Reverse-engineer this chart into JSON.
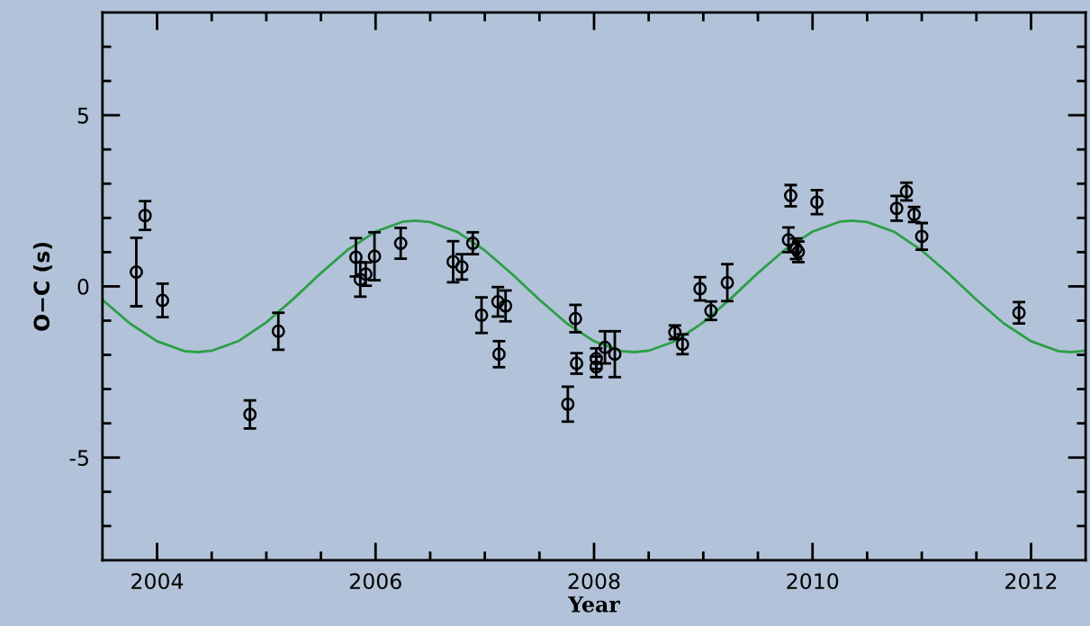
{
  "chart_data": {
    "type": "scatter",
    "xlabel": "Year",
    "ylabel": "O−C (s)",
    "xlim": [
      2003.5,
      2012.5
    ],
    "ylim": [
      -8,
      8
    ],
    "xticks": [
      2004,
      {
        "value": 2004.5,
        "label": null
      },
      {
        "value": 2005,
        "label": null
      },
      {
        "value": 2005.5,
        "label": null
      },
      2006,
      {
        "value": 2006.5,
        "label": null
      },
      {
        "value": 2007,
        "label": null
      },
      {
        "value": 2007.5,
        "label": null
      },
      2008,
      {
        "value": 2008.5,
        "label": null
      },
      {
        "value": 2009,
        "label": null
      },
      {
        "value": 2009.5,
        "label": null
      },
      2010,
      {
        "value": 2010.5,
        "label": null
      },
      {
        "value": 2011,
        "label": null
      },
      {
        "value": 2011.5,
        "label": null
      },
      2012
    ],
    "yticks": [
      {
        "value": -7,
        "label": null
      },
      {
        "value": -6,
        "label": null
      },
      -5,
      {
        "value": -4,
        "label": null
      },
      {
        "value": -3,
        "label": null
      },
      {
        "value": -2,
        "label": null
      },
      {
        "value": -1,
        "label": null
      },
      0,
      {
        "value": 1,
        "label": null
      },
      {
        "value": 2,
        "label": null
      },
      {
        "value": 3,
        "label": null
      },
      {
        "value": 4,
        "label": null
      },
      5,
      {
        "value": 6,
        "label": null
      },
      {
        "value": 7,
        "label": null
      }
    ],
    "grid": false,
    "legend": false,
    "series": [
      {
        "type": "line",
        "color": "#2e9e48",
        "line_style": "solid",
        "marker": "none",
        "x": [
          2003.5,
          2003.75,
          2004.0,
          2004.25,
          2004.37,
          2004.5,
          2004.75,
          2005.0,
          2005.25,
          2005.5,
          2005.75,
          2006.0,
          2006.25,
          2006.37,
          2006.5,
          2006.75,
          2007.0,
          2007.25,
          2007.5,
          2007.75,
          2008.0,
          2008.25,
          2008.37,
          2008.5,
          2008.75,
          2009.0,
          2009.25,
          2009.5,
          2009.75,
          2010.0,
          2010.25,
          2010.37,
          2010.5,
          2010.75,
          2011.0,
          2011.25,
          2011.5,
          2011.75,
          2012.0,
          2012.25,
          2012.37,
          2012.5
        ],
        "values": [
          -0.39,
          -1.08,
          -1.6,
          -1.89,
          -1.92,
          -1.88,
          -1.59,
          -1.05,
          -0.36,
          0.39,
          1.08,
          1.6,
          1.89,
          1.92,
          1.88,
          1.59,
          1.05,
          0.36,
          -0.39,
          -1.08,
          -1.6,
          -1.89,
          -1.92,
          -1.88,
          -1.59,
          -1.05,
          -0.36,
          0.39,
          1.08,
          1.6,
          1.89,
          1.92,
          1.88,
          1.59,
          1.05,
          0.36,
          -0.39,
          -1.08,
          -1.6,
          -1.89,
          -1.92,
          -1.88
        ]
      },
      {
        "color": "#000000",
        "marker": "circle",
        "x": [
          2003.81,
          2003.89,
          2004.05,
          2004.85,
          2005.11,
          2005.82,
          2005.86,
          2005.91,
          2005.99,
          2006.23,
          2006.71,
          2006.79,
          2006.89,
          2006.97,
          2007.12,
          2007.19,
          2007.13,
          2007.83,
          2007.84,
          2007.76,
          2008.02,
          2008.02,
          2008.1,
          2008.19,
          2008.74,
          2008.81,
          2008.97,
          2009.07,
          2009.22,
          2009.78,
          2009.8,
          2009.85,
          2009.87,
          2010.04,
          2010.77,
          2010.86,
          2010.93,
          2011.0,
          2011.89
        ],
        "values": [
          0.42,
          2.07,
          -0.41,
          -3.74,
          -1.31,
          0.85,
          0.2,
          0.36,
          0.88,
          1.26,
          0.72,
          0.57,
          1.26,
          -0.84,
          -0.45,
          -0.57,
          -1.98,
          -0.94,
          -2.25,
          -3.44,
          -2.11,
          -2.35,
          -1.78,
          -1.98,
          -1.34,
          -1.69,
          -0.07,
          -0.71,
          0.11,
          1.36,
          2.65,
          1.1,
          1.01,
          2.46,
          2.28,
          2.77,
          2.1,
          1.46,
          -0.77
        ],
        "errors": [
          1.0,
          0.42,
          0.49,
          0.41,
          0.54,
          0.56,
          0.5,
          0.34,
          0.7,
          0.45,
          0.6,
          0.37,
          0.32,
          0.52,
          0.43,
          0.45,
          0.38,
          0.4,
          0.3,
          0.51,
          0.3,
          0.3,
          0.47,
          0.67,
          0.2,
          0.29,
          0.34,
          0.27,
          0.54,
          0.36,
          0.31,
          0.3,
          0.3,
          0.35,
          0.36,
          0.26,
          0.22,
          0.39,
          0.31
        ]
      }
    ]
  }
}
